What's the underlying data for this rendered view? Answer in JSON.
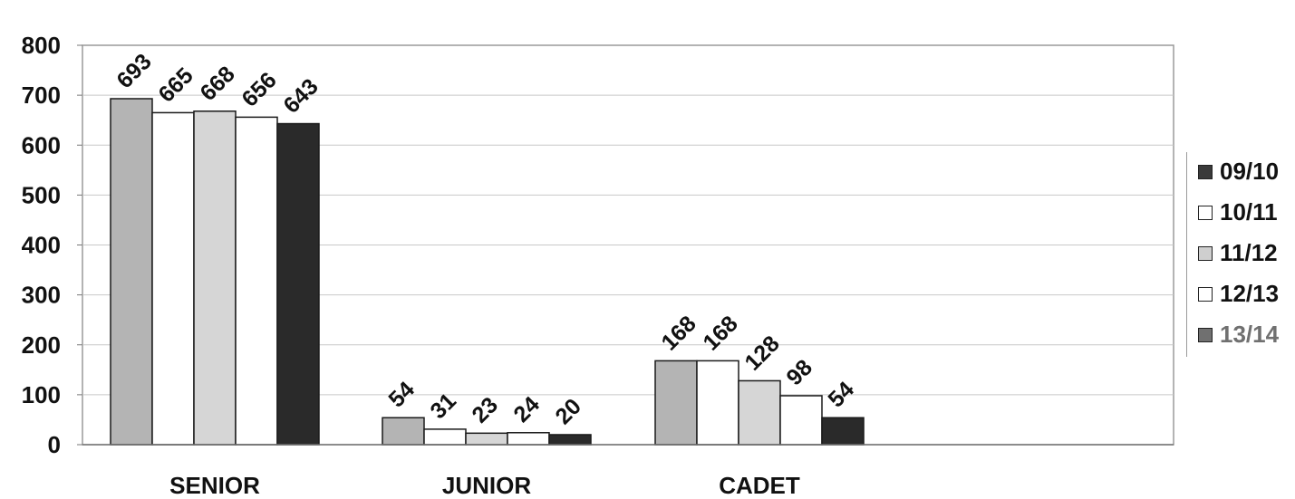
{
  "chart_data": {
    "type": "bar",
    "title": "",
    "xlabel": "",
    "ylabel": "",
    "ylim": [
      0,
      800
    ],
    "yticks": [
      "0",
      "100",
      "200",
      "300",
      "400",
      "500",
      "600",
      "700",
      "800"
    ],
    "categories": [
      "SENIOR",
      "JUNIOR",
      "CADET"
    ],
    "grid": true,
    "legend_position": "right",
    "series": [
      {
        "name": "09/10",
        "values": [
          693,
          54,
          168
        ],
        "color": "#b4b4b4"
      },
      {
        "name": "10/11",
        "values": [
          665,
          31,
          168
        ],
        "color": "#ffffff"
      },
      {
        "name": "11/12",
        "values": [
          668,
          23,
          128
        ],
        "color": "#d6d6d6"
      },
      {
        "name": "12/13",
        "values": [
          656,
          24,
          98
        ],
        "color": "#ffffff"
      },
      {
        "name": "13/14",
        "values": [
          643,
          20,
          54
        ],
        "color": "#2a2a2a"
      }
    ],
    "data_labels": [
      [
        "693",
        "54",
        "168"
      ],
      [
        "665",
        "31",
        "168"
      ],
      [
        "668",
        "23",
        "128"
      ],
      [
        "656",
        "24",
        "98"
      ],
      [
        "643",
        "20",
        "54"
      ]
    ]
  },
  "legend": {
    "items": [
      {
        "label": "09/10",
        "swatch": "#3a3a3a",
        "text_color": "#111111"
      },
      {
        "label": "10/11",
        "swatch": "#ffffff",
        "text_color": "#111111"
      },
      {
        "label": "11/12",
        "swatch": "#cfcfcf",
        "text_color": "#111111"
      },
      {
        "label": "12/13",
        "swatch": "#ffffff",
        "text_color": "#111111"
      },
      {
        "label": "13/14",
        "swatch": "#707070",
        "text_color": "#707070"
      }
    ]
  }
}
